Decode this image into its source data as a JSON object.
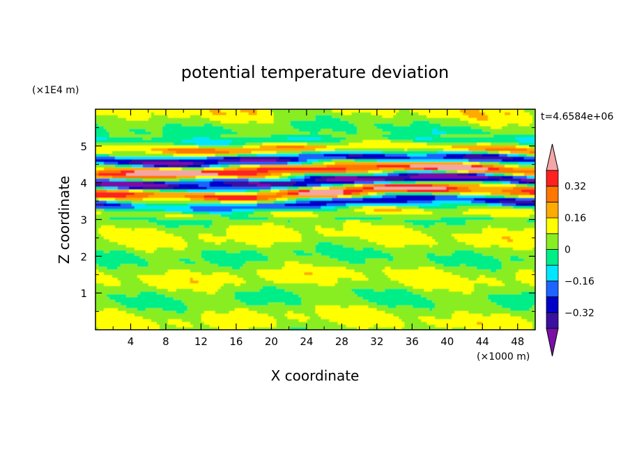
{
  "chart_data": {
    "type": "heatmap",
    "title": "potential temperature deviation",
    "xlabel": "X coordinate",
    "ylabel": "Z coordinate",
    "x_unit": "(×1000 m)",
    "y_unit": "(×1E4 m)",
    "time_label": "t=4.6584e+06",
    "xlim": [
      0,
      50
    ],
    "ylim": [
      0,
      6
    ],
    "x_ticks": [
      "4",
      "8",
      "12",
      "16",
      "20",
      "24",
      "28",
      "32",
      "36",
      "40",
      "44",
      "48"
    ],
    "x_tick_values": [
      4,
      8,
      12,
      16,
      20,
      24,
      28,
      32,
      36,
      40,
      44,
      48
    ],
    "y_ticks": [
      "1",
      "2",
      "3",
      "4",
      "5"
    ],
    "y_tick_values": [
      1,
      2,
      3,
      4,
      5
    ],
    "colorbar": {
      "labels": [
        "0.32",
        "0.16",
        "0",
        "-0.16",
        "-0.32"
      ],
      "label_values": [
        0.32,
        0.16,
        0,
        -0.16,
        -0.32
      ],
      "levels": [
        -0.4,
        -0.32,
        -0.24,
        -0.16,
        -0.08,
        0,
        0.08,
        0.16,
        0.24,
        0.32,
        0.4
      ],
      "colors": [
        "#7a0fa8",
        "#3a10a0",
        "#0000c8",
        "#1e64ff",
        "#00e6ff",
        "#00ee88",
        "#88ee22",
        "#ffff00",
        "#ffaa00",
        "#ff7700",
        "#ff2020",
        "#f4a6a6"
      ]
    }
  }
}
